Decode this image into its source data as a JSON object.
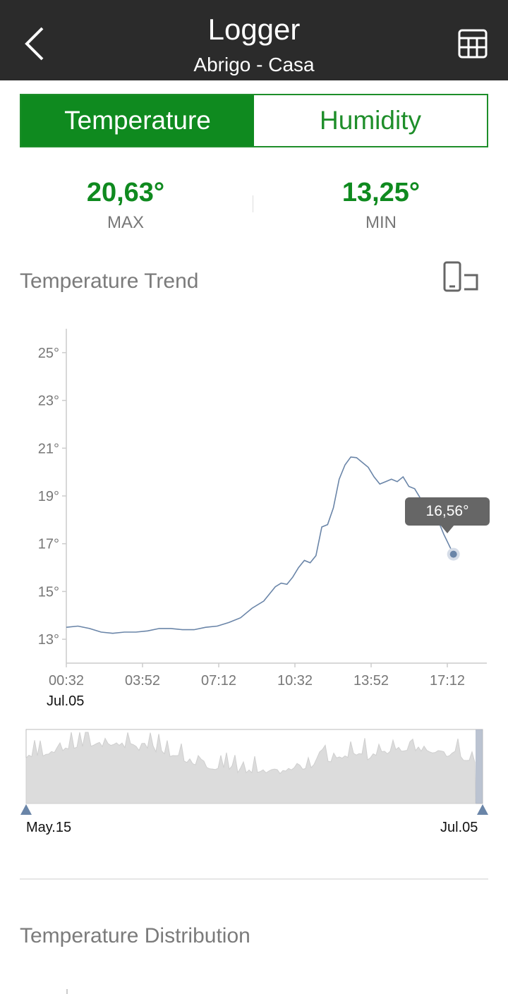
{
  "header": {
    "title": "Logger",
    "subtitle": "Abrigo - Casa",
    "back_icon": "chevron-left-icon",
    "table_icon": "table-grid-icon"
  },
  "tabs": [
    {
      "label": "Temperature",
      "active": true
    },
    {
      "label": "Humidity",
      "active": false
    }
  ],
  "stats": {
    "max": {
      "value": "20,63°",
      "label": "MAX"
    },
    "min": {
      "value": "13,25°",
      "label": "MIN"
    }
  },
  "trend": {
    "title": "Temperature Trend",
    "rotate_icon": "rotate-screen-icon",
    "tooltip": "16,56°",
    "date_label": "Jul.05"
  },
  "range": {
    "start": "May.15",
    "end": "Jul.05"
  },
  "distribution": {
    "title": "Temperature Distribution"
  },
  "colors": {
    "accent": "#0f8a1f",
    "header": "#2b2b2b",
    "line": "#6a85a8"
  },
  "chart_data": {
    "type": "line",
    "title": "Temperature Trend",
    "xlabel": "",
    "ylabel": "",
    "ylim": [
      12,
      26
    ],
    "yticks": [
      13,
      15,
      17,
      19,
      21,
      23,
      25
    ],
    "ytick_labels": [
      "13°",
      "15°",
      "17°",
      "19°",
      "21°",
      "23°",
      "25°"
    ],
    "xticks": [
      "00:32",
      "03:52",
      "07:12",
      "10:32",
      "13:52",
      "17:12"
    ],
    "grid": false,
    "series": [
      {
        "x": [
          0,
          0.5,
          1,
          1.5,
          2,
          2.5,
          3,
          3.5,
          4,
          4.5,
          5,
          5.5,
          6,
          6.5,
          7,
          7.5,
          8,
          8.5,
          9,
          9.25,
          9.5,
          9.75,
          10,
          10.25,
          10.5,
          10.75,
          11,
          11.25,
          11.5,
          11.75,
          12,
          12.25,
          12.5,
          12.75,
          13,
          13.25,
          13.5,
          13.75,
          14,
          14.25,
          14.5,
          14.75,
          15,
          15.25,
          15.5,
          15.75,
          16,
          16.25,
          16.5,
          16.67
        ],
        "y": [
          13.5,
          13.55,
          13.45,
          13.3,
          13.25,
          13.3,
          13.3,
          13.35,
          13.45,
          13.45,
          13.4,
          13.4,
          13.5,
          13.55,
          13.7,
          13.9,
          14.3,
          14.6,
          15.2,
          15.35,
          15.3,
          15.6,
          16.0,
          16.3,
          16.2,
          16.5,
          17.7,
          17.8,
          18.5,
          19.7,
          20.3,
          20.63,
          20.6,
          20.4,
          20.2,
          19.8,
          19.5,
          19.6,
          19.7,
          19.6,
          19.8,
          19.4,
          19.3,
          18.9,
          18.6,
          18.2,
          18.0,
          17.4,
          16.9,
          16.56
        ]
      }
    ],
    "overview": {
      "start": "May.15",
      "end": "Jul.05"
    }
  }
}
